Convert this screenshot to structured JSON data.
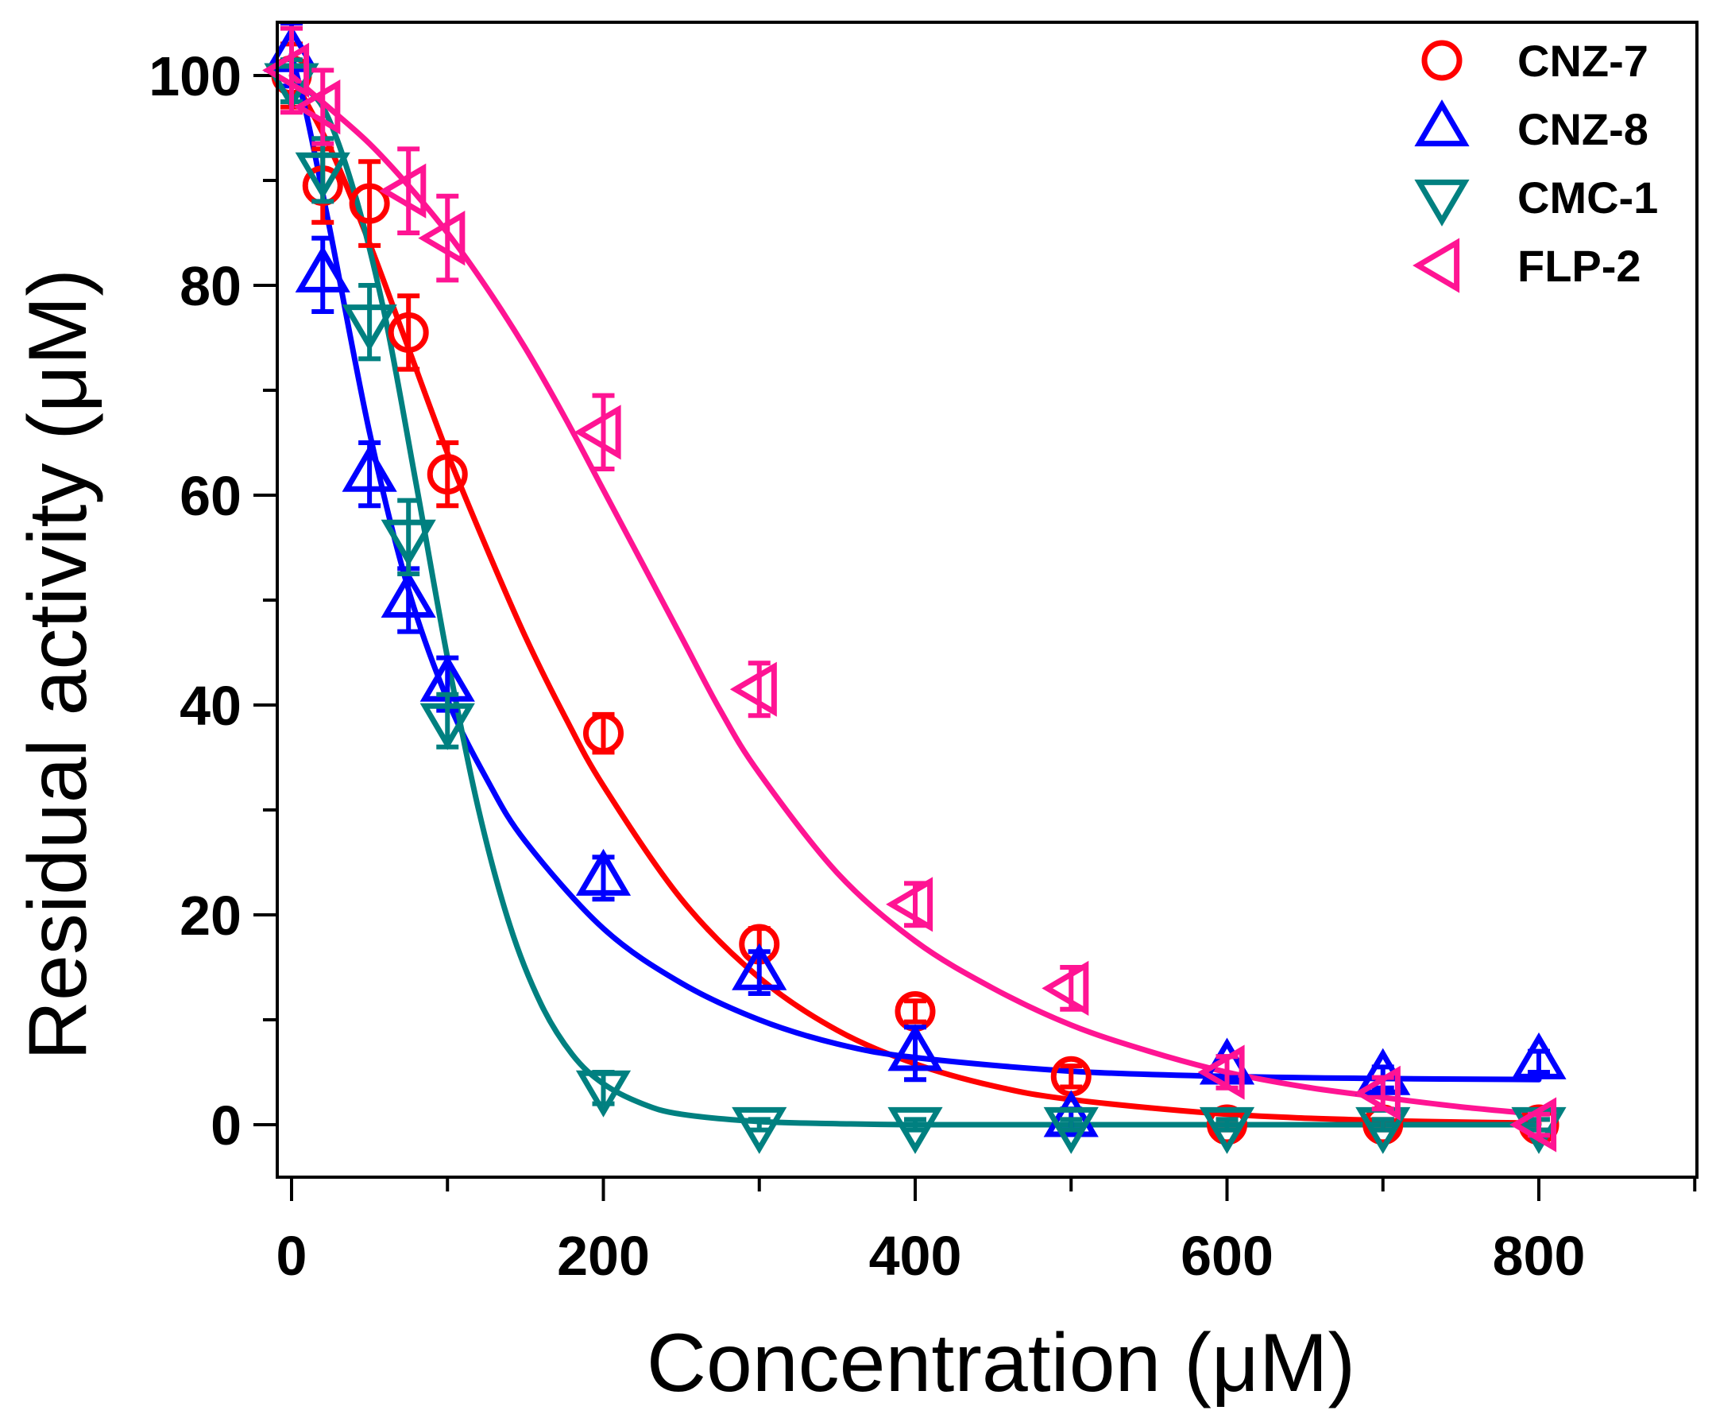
{
  "chart_data": {
    "type": "scatter",
    "title": "",
    "xlabel": "Concentration (μM)",
    "ylabel": "Residual activity (μM)",
    "xlim": [
      -10,
      900
    ],
    "ylim": [
      -5,
      105
    ],
    "x_ticks": [
      0,
      200,
      400,
      600,
      800
    ],
    "x_tick_labels": [
      "0",
      "200",
      "400",
      "600",
      "800"
    ],
    "x_minor_ticks": [
      100,
      300,
      500,
      700,
      900
    ],
    "y_ticks": [
      0,
      20,
      40,
      60,
      80,
      100
    ],
    "y_tick_labels": [
      "0",
      "20",
      "40",
      "60",
      "80",
      "100"
    ],
    "y_minor_ticks": [
      10,
      30,
      50,
      70,
      90
    ],
    "grid": false,
    "legend_position": "top-right",
    "series": [
      {
        "name": "CNZ-7",
        "color": "#ff0000",
        "marker": "circle",
        "x": [
          0,
          20,
          50,
          75,
          100,
          200,
          300,
          400,
          500,
          600,
          700,
          800
        ],
        "y": [
          100,
          89.5,
          87.8,
          75.5,
          62,
          37.3,
          17.2,
          10.8,
          4.6,
          0,
          0,
          0
        ],
        "err": [
          3,
          3.5,
          4,
          3.5,
          3,
          1.8,
          1.5,
          1,
          1,
          0.5,
          0.5,
          0.5
        ],
        "fit_x": [
          0,
          25,
          50,
          75,
          100,
          125,
          150,
          175,
          200,
          250,
          300,
          350,
          400,
          450,
          500,
          600,
          700,
          800
        ],
        "fit_y": [
          100,
          93,
          84,
          74,
          64,
          55,
          46.5,
          39,
          32.3,
          21.5,
          14,
          9,
          5.8,
          3.7,
          2.4,
          1,
          0.4,
          0.15
        ]
      },
      {
        "name": "CNZ-8",
        "color": "#0000ff",
        "marker": "triangle-up",
        "x": [
          0,
          20,
          50,
          75,
          100,
          200,
          300,
          400,
          500,
          600,
          700,
          800
        ],
        "y": [
          102,
          81,
          62,
          50,
          42,
          23.5,
          14.5,
          6.8,
          0.5,
          5.5,
          4.5,
          6
        ],
        "err": [
          3,
          3.5,
          3,
          3,
          2.5,
          2,
          2,
          2.5,
          1,
          1,
          1,
          1
        ],
        "fit_x": [
          0,
          10,
          25,
          50,
          75,
          100,
          125,
          150,
          200,
          250,
          300,
          350,
          400,
          500,
          600,
          700,
          800
        ],
        "fit_y": [
          102,
          96,
          85,
          66,
          51,
          40.5,
          33,
          27,
          18.7,
          13.5,
          10,
          7.7,
          6.4,
          5.1,
          4.6,
          4.4,
          4.3
        ]
      },
      {
        "name": "CMC-1",
        "color": "#008080",
        "marker": "triangle-down",
        "x": [
          0,
          20,
          50,
          75,
          100,
          200,
          300,
          400,
          500,
          600,
          700,
          800
        ],
        "y": [
          99.5,
          91,
          76.5,
          56,
          38.5,
          3.5,
          0,
          0,
          0,
          0,
          0,
          0
        ],
        "err": [
          2,
          3,
          3.5,
          3.5,
          2.5,
          1.5,
          0.5,
          0.5,
          0.5,
          0.5,
          0.5,
          0.5
        ],
        "fit_x": [
          0,
          20,
          40,
          60,
          80,
          100,
          120,
          140,
          160,
          180,
          200,
          225,
          250,
          300,
          350,
          400,
          500,
          600,
          700,
          800
        ],
        "fit_y": [
          99.5,
          97,
          89,
          77,
          61,
          44.5,
          30,
          19,
          11.5,
          6.7,
          3.9,
          2,
          1,
          0.3,
          0.1,
          0,
          0,
          0,
          0,
          0
        ]
      },
      {
        "name": "FLP-2",
        "color": "#ff1493",
        "marker": "triangle-left",
        "x": [
          0,
          20,
          75,
          100,
          200,
          300,
          400,
          500,
          600,
          700,
          800
        ],
        "y": [
          100.5,
          97,
          89,
          84.5,
          66,
          41.5,
          21,
          13,
          5,
          3,
          0
        ],
        "err": [
          4,
          3.5,
          4,
          4,
          3.5,
          2.5,
          2,
          2,
          1.5,
          1.5,
          1
        ],
        "fit_x": [
          0,
          25,
          50,
          75,
          100,
          125,
          150,
          175,
          200,
          225,
          250,
          275,
          300,
          350,
          400,
          450,
          500,
          550,
          600,
          650,
          700,
          750,
          800
        ],
        "fit_y": [
          100,
          96.8,
          93.5,
          89.5,
          85,
          79.8,
          74,
          67.5,
          60.5,
          53.5,
          46.5,
          39.5,
          33.5,
          24,
          17.5,
          13,
          9.5,
          7,
          5,
          3.6,
          2.6,
          1.7,
          1
        ]
      }
    ]
  }
}
